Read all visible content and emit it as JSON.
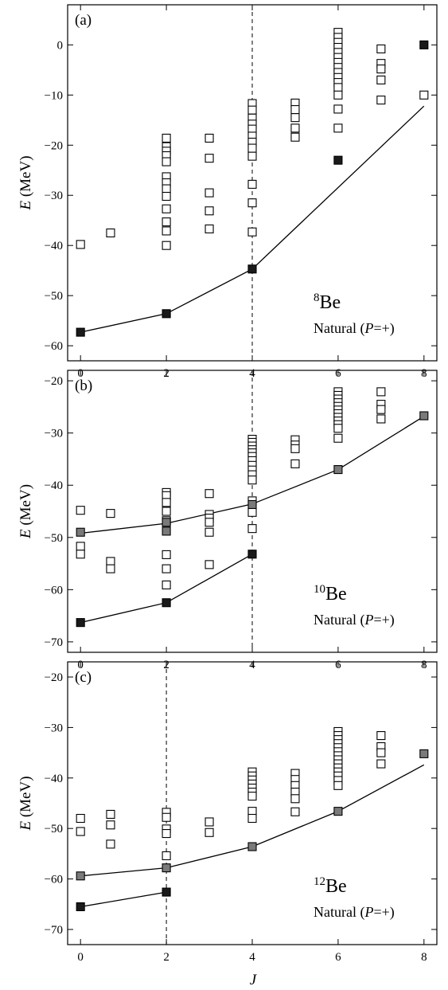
{
  "x_axis": {
    "label": "J",
    "ticks": [
      0,
      2,
      4,
      6,
      8
    ]
  },
  "chart_data": [
    {
      "type": "scatter",
      "panel_label": "(a)",
      "mass_number": "8",
      "element": "Be",
      "parity_text": "Natural (P=+)",
      "ylabel_italic": "E",
      "ylabel_unit": " (MeV)",
      "xlim": [
        -0.3,
        8.3
      ],
      "ylim": [
        -63,
        8
      ],
      "yticks": [
        -60,
        -50,
        -40,
        -30,
        -20,
        -10,
        0
      ],
      "xticks": [
        0,
        2,
        4,
        6,
        8
      ],
      "dashed_line_x": 4,
      "colors": {
        "yrast": "#1a1a1a",
        "band": "#7a7a7a",
        "open": "#ffffff"
      },
      "open_points": [
        [
          0,
          -39.8
        ],
        [
          0.7,
          -37.5
        ],
        [
          2,
          -18.6
        ],
        [
          2,
          -20.3
        ],
        [
          2,
          -21.2
        ],
        [
          2,
          -22.1
        ],
        [
          2,
          -23.3
        ],
        [
          2,
          -26.3
        ],
        [
          2,
          -27.5
        ],
        [
          2,
          -28.7
        ],
        [
          2,
          -30.2
        ],
        [
          2,
          -32.7
        ],
        [
          2,
          -35.3
        ],
        [
          2,
          -37.1
        ],
        [
          2,
          -40.0
        ],
        [
          3,
          -18.6
        ],
        [
          3,
          -22.6
        ],
        [
          3,
          -29.5
        ],
        [
          3,
          -33.1
        ],
        [
          3,
          -36.7
        ],
        [
          4,
          -11.7
        ],
        [
          4,
          -13.0
        ],
        [
          4,
          -14.6
        ],
        [
          4,
          -15.8
        ],
        [
          4,
          -16.8
        ],
        [
          4,
          -18.2
        ],
        [
          4,
          -19.4
        ],
        [
          4,
          -20.6
        ],
        [
          4,
          -22.2
        ],
        [
          4,
          -27.8
        ],
        [
          4,
          -31.5
        ],
        [
          4,
          -37.3
        ],
        [
          5,
          -11.6
        ],
        [
          5,
          -12.9
        ],
        [
          5,
          -14.5
        ],
        [
          5,
          -16.6
        ],
        [
          5,
          -18.4
        ],
        [
          6,
          2.5
        ],
        [
          6,
          1.5
        ],
        [
          6,
          0.5
        ],
        [
          6,
          -0.5
        ],
        [
          6,
          -1.5
        ],
        [
          6,
          -2.5
        ],
        [
          6,
          -3.5
        ],
        [
          6,
          -4.5
        ],
        [
          6,
          -5.5
        ],
        [
          6,
          -6.5
        ],
        [
          6,
          -7.5
        ],
        [
          6,
          -8.5
        ],
        [
          6,
          -10.0
        ],
        [
          6,
          -12.8
        ],
        [
          6,
          -16.6
        ],
        [
          7,
          -0.8
        ],
        [
          7,
          -3.7
        ],
        [
          7,
          -4.8
        ],
        [
          7,
          -7.0
        ],
        [
          7,
          -11.0
        ],
        [
          8,
          -10.0
        ]
      ],
      "filled_points": [
        [
          0,
          -57.3
        ],
        [
          2,
          -53.6
        ],
        [
          4,
          -44.7
        ],
        [
          6,
          -23.0
        ],
        [
          8,
          0.0
        ]
      ],
      "gray_points": [],
      "lines": [
        {
          "color": "#000000",
          "x": [
            0,
            2,
            4,
            8
          ],
          "y": [
            -57.3,
            -53.6,
            -44.7,
            -12.2
          ]
        }
      ]
    },
    {
      "type": "scatter",
      "panel_label": "(b)",
      "mass_number": "10",
      "element": "Be",
      "parity_text": "Natural (P=+)",
      "ylabel_italic": "E",
      "ylabel_unit": " (MeV)",
      "xlim": [
        -0.3,
        8.3
      ],
      "ylim": [
        -72,
        -18
      ],
      "yticks": [
        -70,
        -60,
        -50,
        -40,
        -30,
        -20
      ],
      "xticks": [
        0,
        2,
        4,
        6,
        8
      ],
      "dashed_line_x": 4,
      "colors": {
        "yrast": "#1a1a1a",
        "band": "#7a7a7a",
        "open": "#ffffff"
      },
      "open_points": [
        [
          0,
          -44.8
        ],
        [
          0,
          -51.7
        ],
        [
          0,
          -53.2
        ],
        [
          0.7,
          -45.4
        ],
        [
          0.7,
          -54.6
        ],
        [
          0.7,
          -56.0
        ],
        [
          2,
          -41.4
        ],
        [
          2,
          -42.0
        ],
        [
          2,
          -43.3
        ],
        [
          2,
          -45.0
        ],
        [
          2,
          -46.8
        ],
        [
          2,
          -53.3
        ],
        [
          2,
          -56.0
        ],
        [
          2,
          -59.1
        ],
        [
          3,
          -41.6
        ],
        [
          3,
          -45.6
        ],
        [
          3,
          -46.3
        ],
        [
          3,
          -47.1
        ],
        [
          3,
          -49.0
        ],
        [
          3,
          -55.2
        ],
        [
          4,
          -31.2
        ],
        [
          4,
          -31.8
        ],
        [
          4,
          -32.5
        ],
        [
          4,
          -33.2
        ],
        [
          4,
          -33.8
        ],
        [
          4,
          -34.5
        ],
        [
          4,
          -35.3
        ],
        [
          4,
          -36.2
        ],
        [
          4,
          -37.1
        ],
        [
          4,
          -38.0
        ],
        [
          4,
          -39.0
        ],
        [
          4,
          -43.0
        ],
        [
          4,
          -45.2
        ],
        [
          4,
          -48.3
        ],
        [
          5,
          -31.3
        ],
        [
          5,
          -32.3
        ],
        [
          5,
          -33.0
        ],
        [
          5,
          -35.9
        ],
        [
          6,
          -22.1
        ],
        [
          6,
          -22.8
        ],
        [
          6,
          -23.5
        ],
        [
          6,
          -24.2
        ],
        [
          6,
          -24.9
        ],
        [
          6,
          -25.6
        ],
        [
          6,
          -26.3
        ],
        [
          6,
          -27.0
        ],
        [
          6,
          -27.7
        ],
        [
          6,
          -28.4
        ],
        [
          6,
          -29.1
        ],
        [
          6,
          -31.0
        ],
        [
          7,
          -22.1
        ],
        [
          7,
          -24.5
        ],
        [
          7,
          -25.5
        ],
        [
          7,
          -27.3
        ]
      ],
      "filled_points": [
        [
          0,
          -66.3
        ],
        [
          2,
          -62.5
        ],
        [
          4,
          -53.2
        ]
      ],
      "gray_points": [
        [
          0,
          -49.0
        ],
        [
          2,
          -47.1
        ],
        [
          2,
          -48.8
        ],
        [
          4,
          -43.7
        ],
        [
          6,
          -37.0
        ],
        [
          8,
          -26.7
        ]
      ],
      "lines": [
        {
          "color": "#000000",
          "x": [
            0,
            2,
            4
          ],
          "y": [
            -66.3,
            -62.5,
            -53.2
          ]
        },
        {
          "color": "#000000",
          "x": [
            0,
            2,
            4,
            6,
            8
          ],
          "y": [
            -49.2,
            -47.3,
            -43.6,
            -37.0,
            -26.8
          ]
        }
      ]
    },
    {
      "type": "scatter",
      "panel_label": "(c)",
      "mass_number": "12",
      "element": "Be",
      "parity_text": "Natural (P=+)",
      "ylabel_italic": "E",
      "ylabel_unit": " (MeV)",
      "xlim": [
        -0.3,
        8.3
      ],
      "ylim": [
        -73,
        -17
      ],
      "yticks": [
        -70,
        -60,
        -50,
        -40,
        -30,
        -20
      ],
      "xticks": [
        0,
        2,
        4,
        6,
        8
      ],
      "dashed_line_x": 2,
      "colors": {
        "yrast": "#1a1a1a",
        "band": "#7a7a7a",
        "open": "#ffffff"
      },
      "open_points": [
        [
          0,
          -48.0
        ],
        [
          0,
          -50.6
        ],
        [
          0.7,
          -47.2
        ],
        [
          0.7,
          -49.3
        ],
        [
          0.7,
          -53.1
        ],
        [
          2,
          -46.8
        ],
        [
          2,
          -47.8
        ],
        [
          2,
          -50.1
        ],
        [
          2,
          -51.0
        ],
        [
          2,
          -55.4
        ],
        [
          3,
          -48.7
        ],
        [
          3,
          -50.8
        ],
        [
          4,
          -38.8
        ],
        [
          4,
          -39.6
        ],
        [
          4,
          -40.4
        ],
        [
          4,
          -41.2
        ],
        [
          4,
          -42.0
        ],
        [
          4,
          -42.8
        ],
        [
          4,
          -43.6
        ],
        [
          4,
          -46.6
        ],
        [
          4,
          -48.0
        ],
        [
          5,
          -39.1
        ],
        [
          5,
          -40.3
        ],
        [
          5,
          -41.5
        ],
        [
          5,
          -42.8
        ],
        [
          5,
          -44.1
        ],
        [
          5,
          -46.7
        ],
        [
          6,
          -30.8
        ],
        [
          6,
          -31.6
        ],
        [
          6,
          -32.4
        ],
        [
          6,
          -33.2
        ],
        [
          6,
          -34.0
        ],
        [
          6,
          -34.8
        ],
        [
          6,
          -35.6
        ],
        [
          6,
          -36.4
        ],
        [
          6,
          -37.2
        ],
        [
          6,
          -38.0
        ],
        [
          6,
          -38.8
        ],
        [
          6,
          -39.6
        ],
        [
          6,
          -40.5
        ],
        [
          6,
          -41.5
        ],
        [
          7,
          -31.6
        ],
        [
          7,
          -33.8
        ],
        [
          7,
          -35.0
        ],
        [
          7,
          -37.2
        ]
      ],
      "filled_points": [
        [
          0,
          -65.5
        ],
        [
          2,
          -62.6
        ]
      ],
      "gray_points": [
        [
          0,
          -59.4
        ],
        [
          2,
          -57.8
        ],
        [
          4,
          -53.6
        ],
        [
          6,
          -46.6
        ],
        [
          8,
          -35.2
        ]
      ],
      "lines": [
        {
          "color": "#000000",
          "x": [
            0,
            2
          ],
          "y": [
            -65.5,
            -62.6
          ]
        },
        {
          "color": "#000000",
          "x": [
            0,
            2,
            4,
            6,
            8
          ],
          "y": [
            -59.4,
            -57.8,
            -53.6,
            -46.6,
            -37.4
          ]
        }
      ]
    }
  ]
}
